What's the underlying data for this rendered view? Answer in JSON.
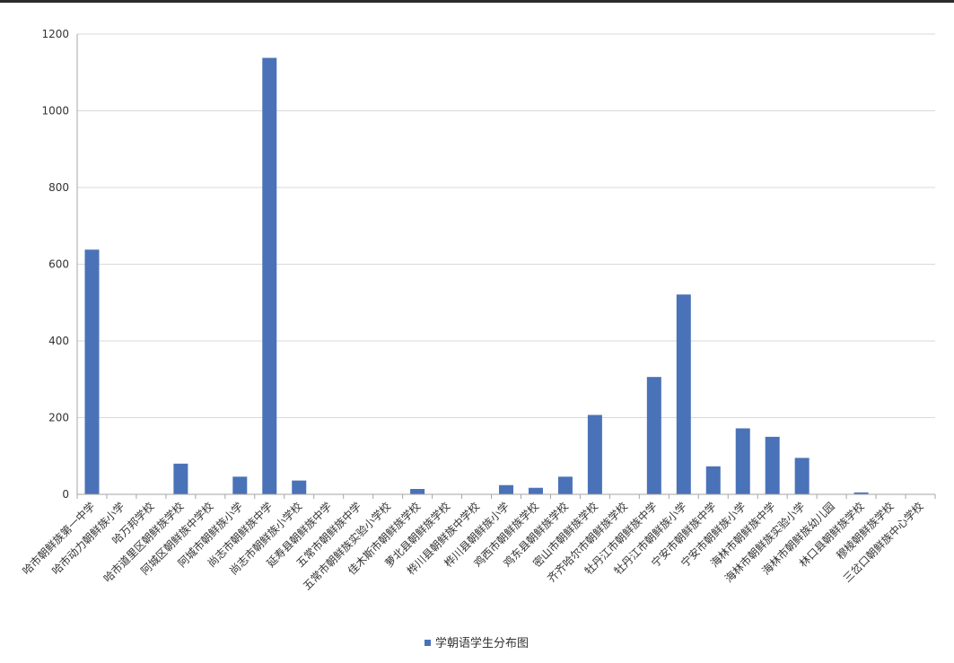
{
  "chart_data": {
    "type": "bar",
    "title": "",
    "xlabel": "",
    "ylabel": "",
    "ylim": [
      0,
      1200
    ],
    "yticks": [
      0,
      200,
      400,
      600,
      800,
      1000,
      1200
    ],
    "grid": true,
    "legend_position": "bottom",
    "colors": {
      "bar": "#4a72b8",
      "grid": "#d9d9d9",
      "axis": "#a6a6a6"
    },
    "categories": [
      "哈市朝鲜族第一中学",
      "哈市动力朝鲜族小学",
      "哈万邦学校",
      "哈市道里区朝鲜族学校",
      "阿城区朝鲜族中学校",
      "阿城市朝鲜族小学",
      "尚志市朝鲜族中学",
      "尚志市朝鲜族小学校",
      "延寿县朝鲜族中学",
      "五常市朝鲜族中学",
      "五常市朝鲜族实验小学校",
      "佳木斯市朝鲜族学校",
      "萝北县朝鲜族学校",
      "桦川县朝鲜族中学校",
      "桦川县朝鲜族小学",
      "鸡西市朝鲜族学校",
      "鸡东县朝鲜族学校",
      "密山市朝鲜族学校",
      "齐齐哈尔市朝鲜族学校",
      "牡丹江市朝鲜族中学",
      "牡丹江市朝鲜族小学",
      "宁安市朝鲜族中学",
      "宁安市朝鲜族小学",
      "海林市朝鲜族中学",
      "海林市朝鲜族实验小学",
      "海林市朝鲜族幼儿园",
      "林口县朝鲜族学校",
      "穆棱朝鲜族学校",
      "三岔口朝鲜族中心学校"
    ],
    "series": [
      {
        "name": "学朝语学生分布图",
        "values": [
          638,
          0,
          0,
          80,
          0,
          46,
          1138,
          36,
          0,
          0,
          0,
          14,
          0,
          0,
          24,
          17,
          46,
          207,
          0,
          306,
          521,
          73,
          172,
          150,
          95,
          0,
          5,
          0,
          0
        ]
      }
    ]
  }
}
